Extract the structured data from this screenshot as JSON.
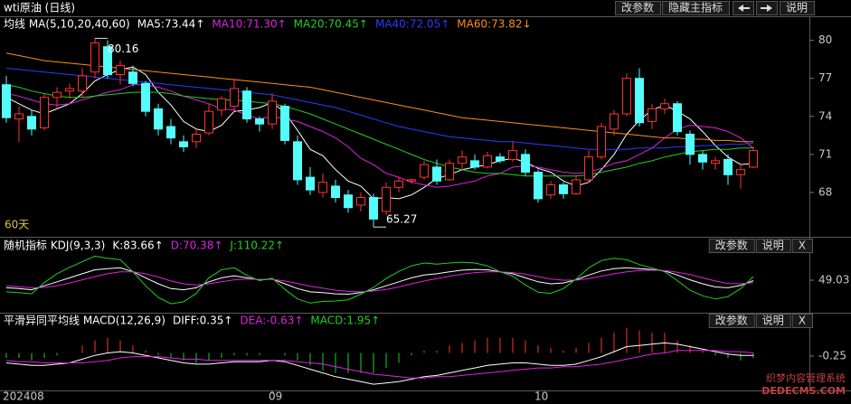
{
  "chart_data": [
    {
      "type": "candlestick",
      "title": "wti原油 (日线)",
      "legend_title": "均线 MA(5,10,20,40,60)",
      "period_label": "60天",
      "buttons": [
        "改参数",
        "隐藏主指标",
        "说明"
      ],
      "up_color": "#ff3232",
      "down_color": "#54fcfc",
      "categories": [
        "202408",
        null,
        null,
        null,
        null,
        null,
        null,
        null,
        null,
        null,
        null,
        null,
        null,
        null,
        null,
        null,
        null,
        null,
        null,
        null,
        null,
        "09",
        null,
        null,
        null,
        null,
        null,
        null,
        null,
        null,
        null,
        null,
        null,
        null,
        null,
        null,
        null,
        null,
        null,
        null,
        null,
        null,
        "10",
        null,
        null,
        null,
        null,
        null,
        null,
        null,
        null,
        null,
        null,
        null,
        null,
        null,
        null,
        null,
        null,
        null
      ],
      "open": [
        76.5,
        73.8,
        74.0,
        73.1,
        75.5,
        76.0,
        76.0,
        77.5,
        79.5,
        77.3,
        77.5,
        76.6,
        74.6,
        73.2,
        72.0,
        72.0,
        72.7,
        74.5,
        74.8,
        76.0,
        73.8,
        73.4,
        74.8,
        72.0,
        69.2,
        68.0,
        68.5,
        67.8,
        67.0,
        67.6,
        66.5,
        68.4,
        68.9,
        69.2,
        70.0,
        69.0,
        70.3,
        70.5,
        70.0,
        70.8,
        70.6,
        71.0,
        69.6,
        67.8,
        68.6,
        67.9,
        69.0,
        70.8,
        73.0,
        74.2,
        77.0,
        73.6,
        74.6,
        75.0,
        72.6,
        71.0,
        70.3,
        70.6,
        69.4,
        70.0
      ],
      "high": [
        77.2,
        74.8,
        74.5,
        75.8,
        76.3,
        76.6,
        77.8,
        80.16,
        80.0,
        78.4,
        78.0,
        76.8,
        75.0,
        73.8,
        72.5,
        73.0,
        75.0,
        75.6,
        77.0,
        76.3,
        74.0,
        75.8,
        75.0,
        72.5,
        70.0,
        69.5,
        69.0,
        68.2,
        68.0,
        67.9,
        68.8,
        69.2,
        69.1,
        70.5,
        70.6,
        70.6,
        71.3,
        71.0,
        71.2,
        71.1,
        72.0,
        71.4,
        69.8,
        68.9,
        68.8,
        69.3,
        71.3,
        73.5,
        74.5,
        77.4,
        77.8,
        75.0,
        75.4,
        75.2,
        72.9,
        71.3,
        70.8,
        71.0,
        70.3,
        71.6
      ],
      "low": [
        73.5,
        72.0,
        72.5,
        72.9,
        74.6,
        75.4,
        75.5,
        77.0,
        77.0,
        76.5,
        76.4,
        74.0,
        72.5,
        71.8,
        71.2,
        71.5,
        72.5,
        74.0,
        74.5,
        73.5,
        72.8,
        73.0,
        71.8,
        68.6,
        67.8,
        67.6,
        67.2,
        66.4,
        66.5,
        65.27,
        66.2,
        68.0,
        68.7,
        69.0,
        68.6,
        68.9,
        69.8,
        69.8,
        69.9,
        70.3,
        70.4,
        69.3,
        67.2,
        67.5,
        67.5,
        67.8,
        68.8,
        70.6,
        72.5,
        74.0,
        73.2,
        73.0,
        74.2,
        72.5,
        70.2,
        69.8,
        69.8,
        68.6,
        68.3,
        69.9
      ],
      "close": [
        73.9,
        74.2,
        73.0,
        75.5,
        75.9,
        76.2,
        77.2,
        79.8,
        77.3,
        78.0,
        76.6,
        74.4,
        73.0,
        72.3,
        71.6,
        72.6,
        74.4,
        75.4,
        76.2,
        73.8,
        73.4,
        75.2,
        72.1,
        69.0,
        68.2,
        68.8,
        67.6,
        66.8,
        67.6,
        65.9,
        68.4,
        68.9,
        69.0,
        70.2,
        68.9,
        70.3,
        70.8,
        70.0,
        70.9,
        70.5,
        71.3,
        69.6,
        67.5,
        68.6,
        67.9,
        69.0,
        70.8,
        73.2,
        74.2,
        77.0,
        73.5,
        74.6,
        75.0,
        72.8,
        71.0,
        70.4,
        70.5,
        69.4,
        69.8,
        71.3
      ],
      "annotations": [
        {
          "index": 7,
          "field": "high"
        },
        {
          "index": 29,
          "field": "low"
        }
      ],
      "ylim": [
        64.5,
        81.9
      ],
      "yticks": [
        68,
        71,
        74,
        77,
        80
      ],
      "grid": false,
      "series": [
        {
          "name": "MA5:73.44↑",
          "color": "#ffffff",
          "values": [
            75.5,
            75,
            74.5,
            74.2,
            74.6,
            75,
            75.8,
            76.8,
            77.3,
            77.7,
            77.9,
            77.3,
            75.9,
            74.9,
            73.6,
            73,
            72.8,
            73.3,
            74.4,
            74.5,
            74.7,
            75.1,
            74.3,
            72.9,
            71.4,
            70.9,
            69.8,
            68.9,
            68.5,
            67.5,
            67.6,
            67.5,
            67.8,
            68.4,
            69.1,
            69.4,
            69.8,
            70,
            70.2,
            70.5,
            70.7,
            70.4,
            69.9,
            69.6,
            68.9,
            68.5,
            68.8,
            69.8,
            71,
            72.6,
            73.7,
            74.5,
            74.9,
            74.4,
            73.8,
            72.8,
            71.7,
            70.8,
            70.2,
            70.3
          ]
        },
        {
          "name": "MA10:71.30↑",
          "color": "#e020e0",
          "values": [
            75.8,
            75.6,
            75.3,
            75,
            74.9,
            75,
            75.3,
            75.6,
            75.9,
            76.1,
            76.5,
            76.5,
            76.3,
            76,
            75.6,
            75.3,
            75,
            74.6,
            74.5,
            74.1,
            73.8,
            74,
            73.8,
            73.6,
            73.2,
            72.8,
            72.3,
            71.6,
            70.7,
            70.2,
            69.5,
            69.2,
            68.8,
            68.6,
            68.4,
            68.5,
            68.7,
            68.9,
            69.3,
            69.5,
            70,
            70.1,
            70,
            69.8,
            69.6,
            69.5,
            69.6,
            69.9,
            70.3,
            70.5,
            71,
            71.5,
            72.3,
            73,
            73.3,
            73.2,
            73.1,
            72.8,
            72.3,
            71.5
          ]
        },
        {
          "name": "MA20:70.45↑",
          "color": "#20d020",
          "values": [
            76.5,
            76.3,
            76,
            75.8,
            75.6,
            75.5,
            75.5,
            75.6,
            75.7,
            75.8,
            75.9,
            75.9,
            75.9,
            75.8,
            75.6,
            75.5,
            75.4,
            75.3,
            75.3,
            75.2,
            75.1,
            75,
            74.8,
            74.5,
            74.2,
            73.8,
            73.4,
            73,
            72.6,
            72.2,
            71.8,
            71.4,
            71,
            70.6,
            70.3,
            70,
            69.8,
            69.6,
            69.5,
            69.5,
            69.4,
            69.3,
            69.3,
            69.3,
            69.3,
            69.3,
            69.4,
            69.6,
            69.8,
            70,
            70.3,
            70.5,
            70.8,
            71,
            71.2,
            71.3,
            71.4,
            71.4,
            71.5,
            71.5
          ]
        },
        {
          "name": "MA40:72.05↑",
          "color": "#2a3cff",
          "values": [
            77.8,
            77.7,
            77.6,
            77.5,
            77.4,
            77.3,
            77.2,
            77.1,
            77,
            76.9,
            76.8,
            76.7,
            76.6,
            76.5,
            76.4,
            76.3,
            76.2,
            76.1,
            76,
            75.9,
            75.8,
            75.7,
            75.5,
            75.3,
            75.1,
            74.9,
            74.7,
            74.4,
            74.1,
            73.8,
            73.5,
            73.2,
            73,
            72.8,
            72.6,
            72.4,
            72.3,
            72.2,
            72.1,
            72,
            72,
            71.9,
            71.8,
            71.7,
            71.6,
            71.5,
            71.4,
            71.4,
            71.4,
            71.4,
            71.5,
            71.5,
            71.5,
            71.6,
            71.6,
            71.7,
            71.7,
            71.8,
            71.8,
            71.9
          ]
        },
        {
          "name": "MA60:73.82↓",
          "color": "#ff8c1a",
          "values": [
            79,
            78.8,
            78.6,
            78.4,
            78.3,
            78.2,
            78.1,
            78,
            77.9,
            77.8,
            77.7,
            77.6,
            77.5,
            77.4,
            77.3,
            77.2,
            77.1,
            77,
            76.9,
            76.8,
            76.7,
            76.6,
            76.5,
            76.4,
            76.3,
            76.1,
            75.9,
            75.7,
            75.5,
            75.3,
            75.1,
            74.9,
            74.7,
            74.5,
            74.3,
            74.1,
            73.9,
            73.8,
            73.7,
            73.6,
            73.5,
            73.4,
            73.3,
            73.2,
            73.1,
            73,
            72.9,
            72.8,
            72.7,
            72.6,
            72.5,
            72.4,
            72.3,
            72.3,
            72.2,
            72.2,
            72.1,
            72.1,
            72,
            72
          ]
        }
      ]
    },
    {
      "type": "line",
      "title": "随机指标 KDJ(9,3,3)",
      "buttons": [
        "改参数",
        "说明",
        "X"
      ],
      "ylim": [
        -30,
        110
      ],
      "yticks": [
        49.03
      ],
      "series": [
        {
          "name": "K:83.66↑",
          "color": "#ffffff",
          "values": [
            30,
            28,
            25,
            35,
            45,
            55,
            65,
            75,
            78,
            80,
            70,
            55,
            40,
            28,
            25,
            30,
            45,
            55,
            60,
            55,
            50,
            52,
            40,
            28,
            20,
            18,
            15,
            14,
            18,
            25,
            35,
            45,
            55,
            62,
            65,
            70,
            74,
            76,
            75,
            70,
            65,
            55,
            45,
            40,
            42,
            50,
            62,
            72,
            78,
            80,
            78,
            76,
            72,
            62,
            50,
            40,
            32,
            30,
            36,
            48
          ]
        },
        {
          "name": "D:70.38↑",
          "color": "#e020e0",
          "values": [
            35,
            33,
            30,
            31,
            35,
            42,
            50,
            58,
            65,
            70,
            70,
            65,
            57,
            47,
            40,
            37,
            40,
            45,
            50,
            52,
            51,
            51,
            47,
            41,
            34,
            29,
            24,
            21,
            20,
            22,
            26,
            32,
            40,
            47,
            53,
            59,
            64,
            68,
            70,
            70,
            68,
            64,
            58,
            52,
            49,
            49,
            53,
            59,
            65,
            70,
            73,
            74,
            73,
            69,
            63,
            55,
            47,
            41,
            40,
            43
          ]
        },
        {
          "name": "J:110.22↑",
          "color": "#20d020",
          "values": [
            20,
            18,
            15,
            43,
            65,
            81,
            95,
            109,
            104,
            100,
            70,
            35,
            6,
            -10,
            -5,
            16,
            55,
            75,
            80,
            61,
            48,
            54,
            26,
            2,
            -8,
            -4,
            -3,
            0,
            14,
            31,
            53,
            71,
            85,
            92,
            89,
            92,
            94,
            92,
            85,
            70,
            59,
            37,
            19,
            16,
            28,
            52,
            80,
            98,
            104,
            100,
            88,
            80,
            70,
            48,
            24,
            10,
            2,
            8,
            28,
            58
          ]
        }
      ]
    },
    {
      "type": "macd",
      "title": "平滑异同平均线 MACD(12,26,9)",
      "buttons": [
        "改参数",
        "说明",
        "X"
      ],
      "ylim": [
        -3,
        2.2
      ],
      "yticks": [
        -0.25
      ],
      "up_color": "#ff3232",
      "down_color": "#20d020",
      "series": [
        {
          "name": "DIFF:0.35↑",
          "color": "#ffffff",
          "values": [
            -0.8,
            -0.9,
            -1,
            -1,
            -0.9,
            -0.8,
            -0.5,
            -0.2,
            0,
            0.1,
            0,
            -0.2,
            -0.4,
            -0.6,
            -0.8,
            -0.9,
            -0.9,
            -0.8,
            -0.7,
            -0.7,
            -0.7,
            -0.6,
            -0.7,
            -1,
            -1.3,
            -1.6,
            -1.9,
            -2.1,
            -2.3,
            -2.5,
            -2.4,
            -2.3,
            -2.1,
            -1.9,
            -1.8,
            -1.6,
            -1.4,
            -1.2,
            -1,
            -0.9,
            -0.8,
            -0.8,
            -0.9,
            -1,
            -1,
            -0.9,
            -0.6,
            -0.3,
            0.1,
            0.5,
            0.6,
            0.7,
            0.8,
            0.7,
            0.5,
            0.3,
            0.1,
            -0.1,
            -0.2,
            -0.2
          ]
        },
        {
          "name": "DEA:-0.63↑",
          "color": "#e020e0",
          "values": [
            -0.6,
            -0.7,
            -0.7,
            -0.8,
            -0.8,
            -0.8,
            -0.8,
            -0.7,
            -0.6,
            -0.4,
            -0.3,
            -0.3,
            -0.3,
            -0.4,
            -0.5,
            -0.5,
            -0.6,
            -0.6,
            -0.6,
            -0.6,
            -0.6,
            -0.6,
            -0.6,
            -0.7,
            -0.8,
            -0.9,
            -1.1,
            -1.3,
            -1.5,
            -1.7,
            -1.8,
            -1.9,
            -2,
            -2,
            -1.9,
            -1.9,
            -1.8,
            -1.7,
            -1.6,
            -1.5,
            -1.4,
            -1.3,
            -1.2,
            -1.2,
            -1.1,
            -1.1,
            -1,
            -0.9,
            -0.7,
            -0.5,
            -0.3,
            -0.1,
            0,
            0.2,
            0.2,
            0.2,
            0.2,
            0.1,
            0.1,
            0
          ]
        },
        {
          "name": "MACD:1.95↑",
          "color": "#20d020",
          "bars": true,
          "values": [
            -0.4,
            -0.4,
            -0.6,
            -0.4,
            -0.2,
            0,
            0.6,
            1,
            1.2,
            1,
            0.6,
            0.2,
            -0.2,
            -0.4,
            -0.6,
            -0.8,
            -0.6,
            -0.4,
            -0.2,
            -0.2,
            -0.2,
            0,
            -0.2,
            -0.6,
            -1,
            -1.4,
            -1.6,
            -1.6,
            -1.6,
            -1.6,
            -1.2,
            -0.8,
            -0.2,
            0.2,
            0.2,
            0.6,
            0.8,
            1,
            1.2,
            1.2,
            1.2,
            1,
            0.6,
            0.4,
            0.2,
            0.4,
            0.8,
            1.2,
            1.6,
            2,
            1.8,
            1.6,
            1.6,
            1,
            0.6,
            0.2,
            -0.2,
            -0.4,
            -0.6,
            -0.4
          ]
        }
      ]
    }
  ],
  "watermark": [
    "织梦内容管理系统",
    "DEDECMS.COM"
  ]
}
